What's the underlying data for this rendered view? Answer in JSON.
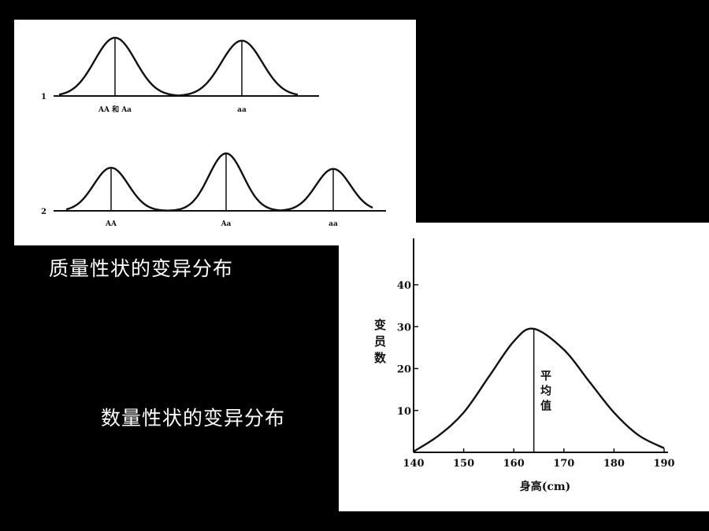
{
  "captions": {
    "qualitative": "质量性状的变异分布",
    "quantitative": "数量性状的变异分布"
  },
  "chart_data": [
    {
      "type": "line",
      "panel": "qualitative",
      "rows": [
        {
          "row_label": "1",
          "peaks": [
            {
              "genotype": "AA 和 Aa",
              "relative_height": 1.0
            },
            {
              "genotype": "aa",
              "relative_height": 0.95
            }
          ]
        },
        {
          "row_label": "2",
          "peaks": [
            {
              "genotype": "AA",
              "relative_height": 0.75
            },
            {
              "genotype": "Aa",
              "relative_height": 1.0
            },
            {
              "genotype": "aa",
              "relative_height": 0.73
            }
          ]
        }
      ]
    },
    {
      "type": "line",
      "panel": "quantitative",
      "xlabel": "身高(cm)",
      "ylabel": "变员数",
      "xlim": [
        140,
        190
      ],
      "ylim": [
        0,
        40
      ],
      "xticks": [
        140,
        150,
        160,
        170,
        180,
        190
      ],
      "yticks": [
        10,
        20,
        30,
        40
      ],
      "grid": false,
      "mean_label": "平均值",
      "mean": 164,
      "x": [
        140,
        145,
        150,
        155,
        160,
        164,
        170,
        175,
        180,
        185,
        190
      ],
      "y": [
        1,
        4,
        9.5,
        18,
        26.5,
        29.5,
        24.5,
        17,
        9.5,
        4,
        1
      ]
    }
  ]
}
